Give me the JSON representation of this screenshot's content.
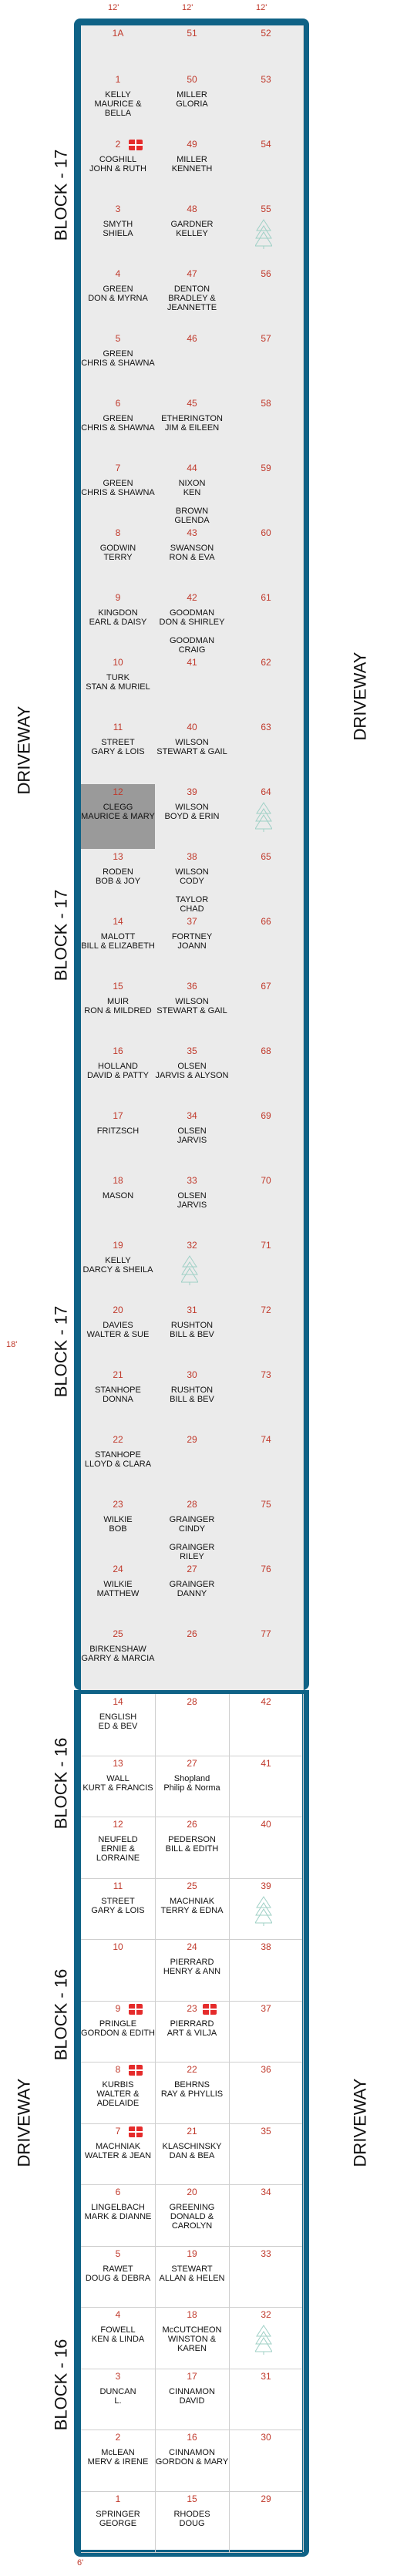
{
  "colors": {
    "border": "#0f6286",
    "number": "#c0392b",
    "shade": "#ebebeb",
    "highlight": "#9a9a9a"
  },
  "top_dimensions": [
    "12'",
    "12'",
    "12'"
  ],
  "side_dimension": "6'",
  "left_dimension": "18'",
  "bottom_dimension": "6'",
  "driveway_label": "DRIVEWAY",
  "block17": {
    "label": "BLOCK - 17",
    "header": [
      "1A",
      "51",
      "52"
    ],
    "rows": [
      [
        {
          "n": "1",
          "t": "KELLY\nMAURICE & BELLA"
        },
        {
          "n": "50",
          "t": "MILLER\nGLORIA"
        },
        {
          "n": "53",
          "t": ""
        }
      ],
      [
        {
          "n": "2",
          "t": "COGHILL\nJOHN & RUTH",
          "gift": true
        },
        {
          "n": "49",
          "t": "MILLER\nKENNETH"
        },
        {
          "n": "54",
          "t": ""
        }
      ],
      [
        {
          "n": "3",
          "t": "SMYTH\nSHIELA"
        },
        {
          "n": "48",
          "t": "GARDNER\nKELLEY"
        },
        {
          "n": "55",
          "t": "",
          "tree": true
        }
      ],
      [
        {
          "n": "4",
          "t": "GREEN\nDON & MYRNA"
        },
        {
          "n": "47",
          "t": "DENTON\nBRADLEY &\nJEANNETTE"
        },
        {
          "n": "56",
          "t": ""
        }
      ],
      [
        {
          "n": "5",
          "t": "GREEN\nCHRIS & SHAWNA"
        },
        {
          "n": "46",
          "t": ""
        },
        {
          "n": "57",
          "t": ""
        }
      ],
      [
        {
          "n": "6",
          "t": "GREEN\nCHRIS & SHAWNA"
        },
        {
          "n": "45",
          "t": "ETHERINGTON\nJIM & EILEEN"
        },
        {
          "n": "58",
          "t": ""
        }
      ],
      [
        {
          "n": "7",
          "t": "GREEN\nCHRIS & SHAWNA"
        },
        {
          "n": "44",
          "t": "NIXON\nKEN\n\nBROWN\nGLENDA"
        },
        {
          "n": "59",
          "t": ""
        }
      ],
      [
        {
          "n": "8",
          "t": "GODWIN\nTERRY"
        },
        {
          "n": "43",
          "t": "SWANSON\nRON & EVA"
        },
        {
          "n": "60",
          "t": ""
        }
      ],
      [
        {
          "n": "9",
          "t": "KINGDON\nEARL & DAISY"
        },
        {
          "n": "42",
          "t": "GOODMAN\nDON & SHIRLEY\n\nGOODMAN\nCRAIG"
        },
        {
          "n": "61",
          "t": ""
        }
      ],
      [
        {
          "n": "10",
          "t": "TURK\nSTAN & MURIEL"
        },
        {
          "n": "41",
          "t": ""
        },
        {
          "n": "62",
          "t": ""
        }
      ],
      [
        {
          "n": "11",
          "t": "STREET\nGARY & LOIS"
        },
        {
          "n": "40",
          "t": "WILSON\nSTEWART & GAIL"
        },
        {
          "n": "63",
          "t": ""
        }
      ],
      [
        {
          "n": "12",
          "t": "CLEGG\nMAURICE & MARY",
          "dark": true
        },
        {
          "n": "39",
          "t": "WILSON\nBOYD & ERIN"
        },
        {
          "n": "64",
          "t": "",
          "tree": true
        }
      ],
      [
        {
          "n": "13",
          "t": "RODEN\nBOB & JOY"
        },
        {
          "n": "38",
          "t": "WILSON\nCODY\n\nTAYLOR\nCHAD"
        },
        {
          "n": "65",
          "t": ""
        }
      ],
      [
        {
          "n": "14",
          "t": "MALOTT\nBILL & ELIZABETH"
        },
        {
          "n": "37",
          "t": "FORTNEY\nJOANN"
        },
        {
          "n": "66",
          "t": ""
        }
      ],
      [
        {
          "n": "15",
          "t": "MUIR\nRON & MILDRED"
        },
        {
          "n": "36",
          "t": "WILSON\nSTEWART & GAIL"
        },
        {
          "n": "67",
          "t": ""
        }
      ],
      [
        {
          "n": "16",
          "t": "HOLLAND\nDAVID & PATTY"
        },
        {
          "n": "35",
          "t": "OLSEN\nJARVIS & ALYSON"
        },
        {
          "n": "68",
          "t": ""
        }
      ],
      [
        {
          "n": "17",
          "t": "FRITZSCH"
        },
        {
          "n": "34",
          "t": "OLSEN\nJARVIS"
        },
        {
          "n": "69",
          "t": ""
        }
      ],
      [
        {
          "n": "18",
          "t": "MASON"
        },
        {
          "n": "33",
          "t": "OLSEN\nJARVIS"
        },
        {
          "n": "70",
          "t": ""
        }
      ],
      [
        {
          "n": "19",
          "t": "KELLY\nDARCY & SHEILA"
        },
        {
          "n": "32",
          "t": "",
          "tree": true
        },
        {
          "n": "71",
          "t": ""
        }
      ],
      [
        {
          "n": "20",
          "t": "DAVIES\nWALTER & SUE"
        },
        {
          "n": "31",
          "t": "RUSHTON\nBILL & BEV"
        },
        {
          "n": "72",
          "t": ""
        }
      ],
      [
        {
          "n": "21",
          "t": "STANHOPE\nDONNA"
        },
        {
          "n": "30",
          "t": "RUSHTON\nBILL & BEV"
        },
        {
          "n": "73",
          "t": ""
        }
      ],
      [
        {
          "n": "22",
          "t": "STANHOPE\nLLOYD & CLARA"
        },
        {
          "n": "29",
          "t": ""
        },
        {
          "n": "74",
          "t": ""
        }
      ],
      [
        {
          "n": "23",
          "t": "WILKIE\nBOB"
        },
        {
          "n": "28",
          "t": "GRAINGER\nCINDY\n\nGRAINGER\nRILEY"
        },
        {
          "n": "75",
          "t": ""
        }
      ],
      [
        {
          "n": "24",
          "t": "WILKIE\nMATTHEW"
        },
        {
          "n": "27",
          "t": "GRAINGER\nDANNY"
        },
        {
          "n": "76",
          "t": ""
        }
      ],
      [
        {
          "n": "25",
          "t": "BIRKENSHAW\nGARRY & MARCIA"
        },
        {
          "n": "26",
          "t": ""
        },
        {
          "n": "77",
          "t": ""
        }
      ]
    ]
  },
  "block16": {
    "label": "BLOCK - 16",
    "rows": [
      [
        {
          "n": "14",
          "t": "ENGLISH\nED & BEV"
        },
        {
          "n": "28",
          "t": ""
        },
        {
          "n": "42",
          "t": ""
        }
      ],
      [
        {
          "n": "13",
          "t": "WALL\nKURT & FRANCIS"
        },
        {
          "n": "27",
          "t": "Shopland\nPhilip & Norma"
        },
        {
          "n": "41",
          "t": ""
        }
      ],
      [
        {
          "n": "12",
          "t": "NEUFELD\nERNIE & LORRAINE"
        },
        {
          "n": "26",
          "t": "PEDERSON\nBILL & EDITH"
        },
        {
          "n": "40",
          "t": ""
        }
      ],
      [
        {
          "n": "11",
          "t": "STREET\nGARY & LOIS"
        },
        {
          "n": "25",
          "t": "MACHNIAK\nTERRY & EDNA"
        },
        {
          "n": "39",
          "t": "",
          "tree": true
        }
      ],
      [
        {
          "n": "10",
          "t": ""
        },
        {
          "n": "24",
          "t": "PIERRARD\nHENRY & ANN"
        },
        {
          "n": "38",
          "t": ""
        }
      ],
      [
        {
          "n": "9",
          "t": "PRINGLE\nGORDON & EDITH",
          "gift": true
        },
        {
          "n": "23",
          "t": "PIERRARD\nART & VILJA",
          "gift": true
        },
        {
          "n": "37",
          "t": ""
        }
      ],
      [
        {
          "n": "8",
          "t": "KURBIS\nWALTER &\nADELAIDE",
          "gift": true
        },
        {
          "n": "22",
          "t": "BEHRNS\nRAY & PHYLLIS"
        },
        {
          "n": "36",
          "t": ""
        }
      ],
      [
        {
          "n": "7",
          "t": "MACHNIAK\nWALTER & JEAN",
          "gift": true
        },
        {
          "n": "21",
          "t": "KLASCHINSKY\nDAN & BEA"
        },
        {
          "n": "35",
          "t": ""
        }
      ],
      [
        {
          "n": "6",
          "t": "LINGELBACH\nMARK & DIANNE"
        },
        {
          "n": "20",
          "t": "GREENING\nDONALD &\nCAROLYN"
        },
        {
          "n": "34",
          "t": ""
        }
      ],
      [
        {
          "n": "5",
          "t": "RAWET\nDOUG & DEBRA"
        },
        {
          "n": "19",
          "t": "STEWART\nALLAN & HELEN"
        },
        {
          "n": "33",
          "t": ""
        }
      ],
      [
        {
          "n": "4",
          "t": "FOWELL\nKEN & LINDA"
        },
        {
          "n": "18",
          "t": "McCUTCHEON\nWINSTON & KAREN"
        },
        {
          "n": "32",
          "t": "",
          "tree": true
        }
      ],
      [
        {
          "n": "3",
          "t": "DUNCAN\nL."
        },
        {
          "n": "17",
          "t": "CINNAMON\nDAVID"
        },
        {
          "n": "31",
          "t": ""
        }
      ],
      [
        {
          "n": "2",
          "t": "McLEAN\nMERV & IRENE"
        },
        {
          "n": "16",
          "t": "CINNAMON\nGORDON & MARY"
        },
        {
          "n": "30",
          "t": ""
        }
      ],
      [
        {
          "n": "1",
          "t": "SPRINGER\nGEORGE"
        },
        {
          "n": "15",
          "t": "RHODES\nDOUG"
        },
        {
          "n": "29",
          "t": ""
        }
      ]
    ]
  }
}
